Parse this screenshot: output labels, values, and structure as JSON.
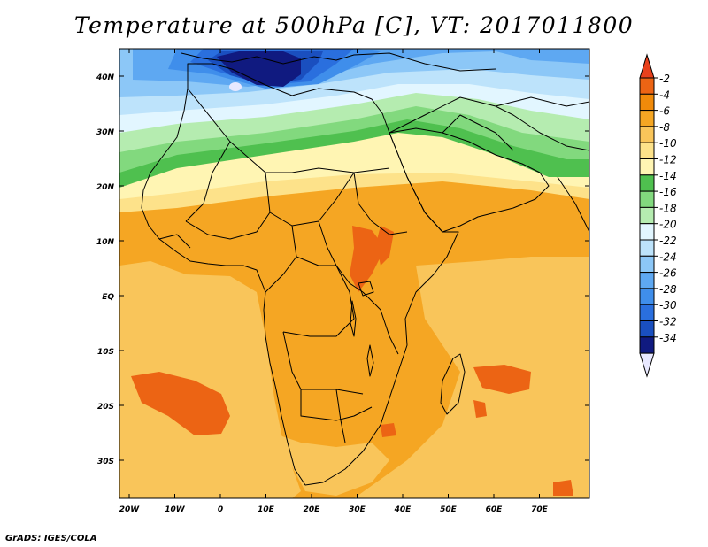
{
  "title": "Temperature at 500hPa [C], VT: 2017011800",
  "credit": "GrADS: IGES/COLA",
  "map": {
    "lat_labels": [
      "40N",
      "30N",
      "20N",
      "10N",
      "EQ",
      "10S",
      "20S",
      "30S"
    ],
    "lon_labels": [
      "20W",
      "10W",
      "0",
      "10E",
      "20E",
      "30E",
      "40E",
      "50E",
      "60E",
      "70E"
    ],
    "lat_range": [
      -37,
      45
    ],
    "lon_range": [
      -22,
      80
    ]
  },
  "colorbar": {
    "labels": [
      "-2",
      "-4",
      "-6",
      "-8",
      "-10",
      "-12",
      "-14",
      "-16",
      "-18",
      "-20",
      "-22",
      "-24",
      "-26",
      "-28",
      "-30",
      "-32",
      "-34"
    ],
    "colors": [
      "#e8e8ff",
      "#101a80",
      "#1a4fbf",
      "#2a6fde",
      "#3f8eeb",
      "#5ea8f2",
      "#8cc7f7",
      "#bde3fb",
      "#e2f6ff",
      "#b5ecb0",
      "#82d97e",
      "#4fc04f",
      "#fff5b3",
      "#fde28a",
      "#f9c55a",
      "#f5a623",
      "#f08a0a",
      "#ec6414",
      "#e8401c"
    ]
  },
  "fields": {
    "base_color": "#f5a623",
    "warm_color": "#ec6414",
    "cold_core_color": "#101a80"
  }
}
